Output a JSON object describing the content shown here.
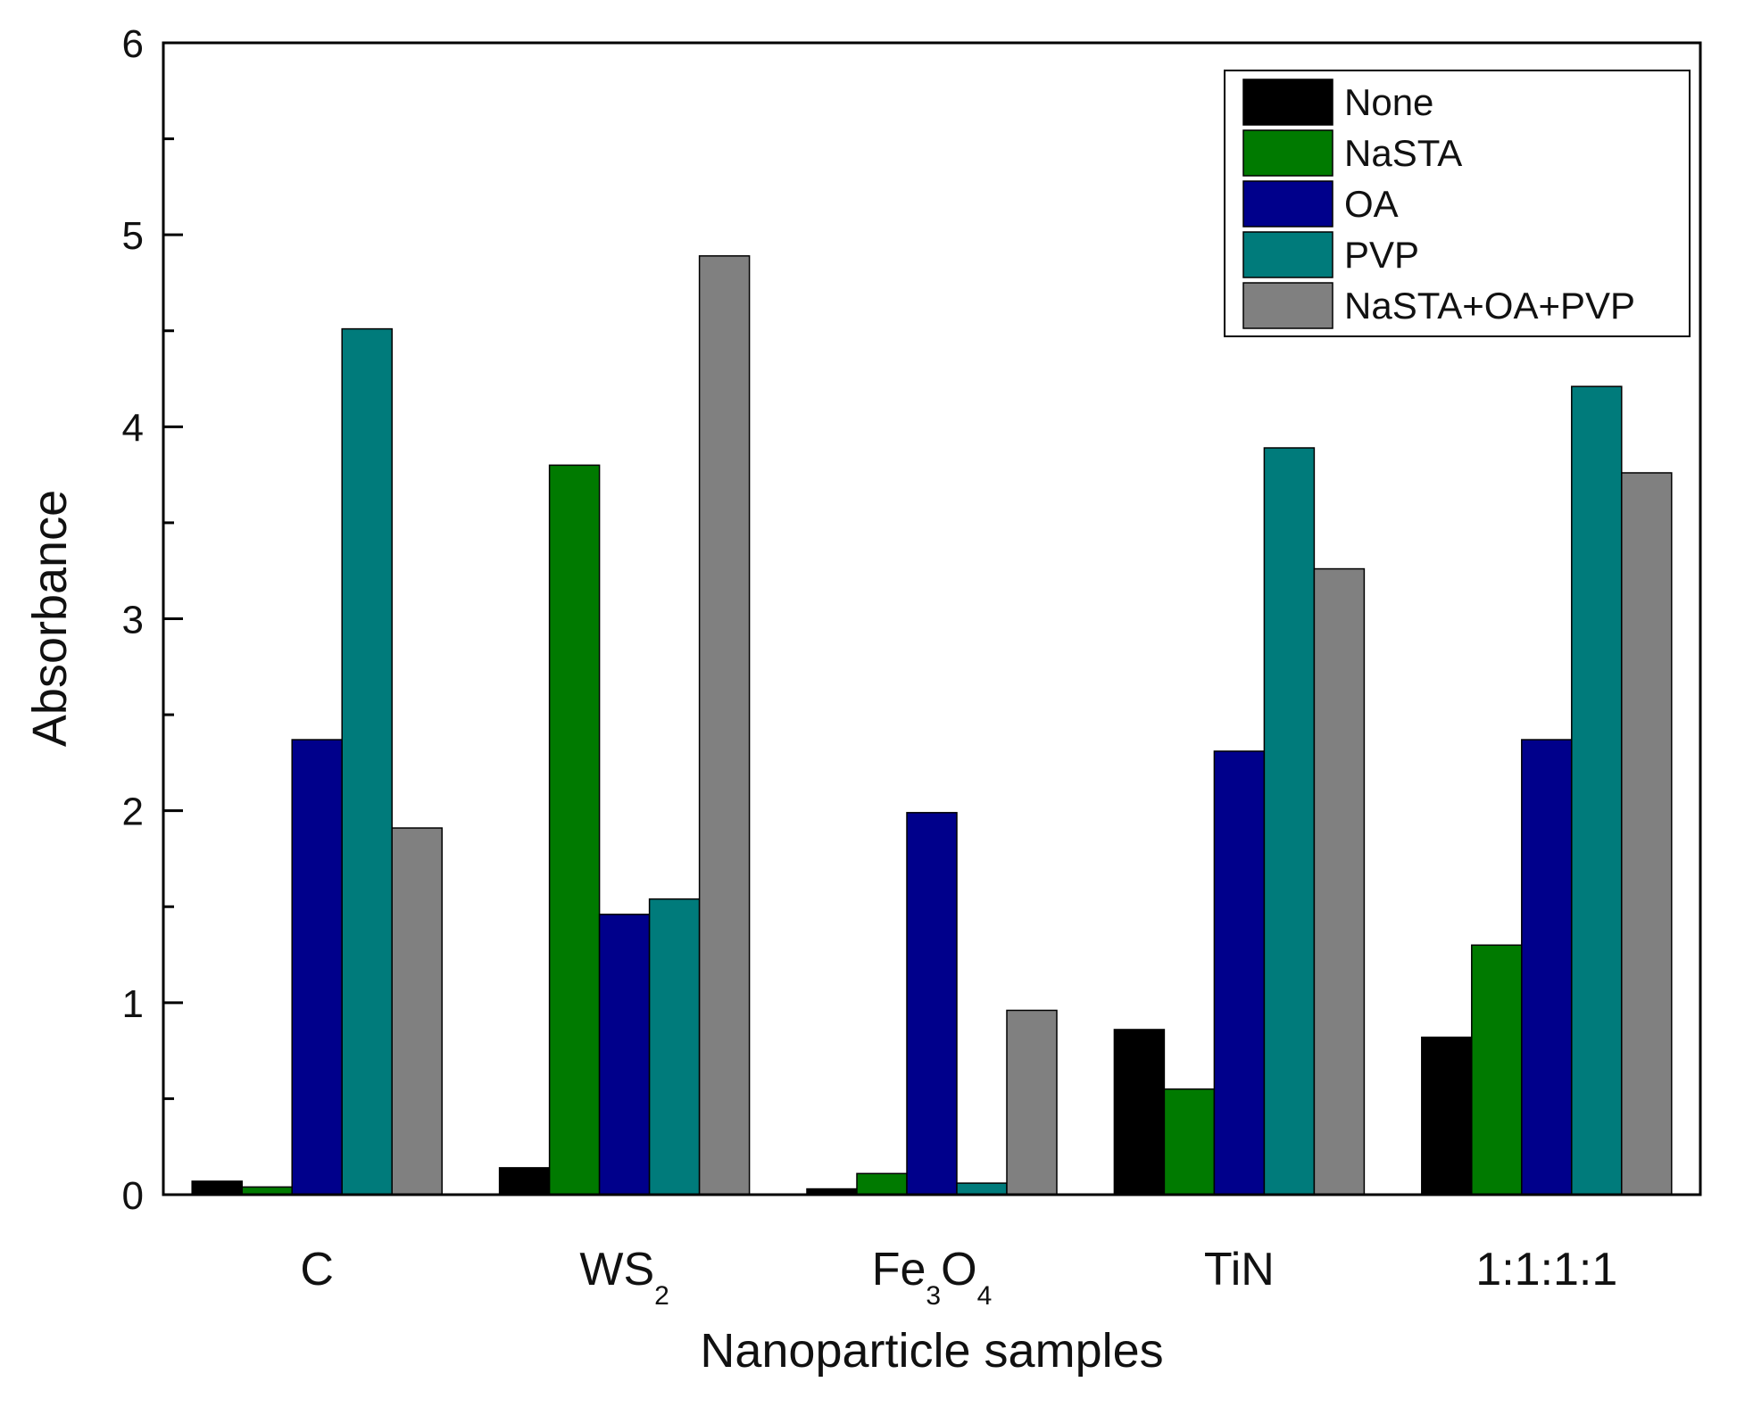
{
  "chart_data": {
    "type": "bar",
    "title": "",
    "xlabel": "Nanoparticle samples",
    "ylabel": "Absorbance",
    "ylim": [
      0,
      6
    ],
    "yticks": [
      "0",
      "1",
      "2",
      "3",
      "4",
      "5",
      "6"
    ],
    "grid": false,
    "legend_position": "top-right",
    "categories": [
      "C",
      "WS2",
      "Fe3O4",
      "TiN",
      "1:1:1:1"
    ],
    "category_labels": [
      {
        "parts": [
          {
            "text": "C"
          }
        ]
      },
      {
        "parts": [
          {
            "text": "WS"
          },
          {
            "text": "2",
            "sub": true
          }
        ]
      },
      {
        "parts": [
          {
            "text": "Fe"
          },
          {
            "text": "3",
            "sub": true
          },
          {
            "text": "O"
          },
          {
            "text": "4",
            "sub": true
          }
        ]
      },
      {
        "parts": [
          {
            "text": "TiN"
          }
        ]
      },
      {
        "parts": [
          {
            "text": "1:1:1:1"
          }
        ]
      }
    ],
    "series": [
      {
        "name": "None",
        "color": "#000000",
        "values": [
          0.07,
          0.14,
          0.03,
          0.86,
          0.82
        ]
      },
      {
        "name": "NaSTA",
        "color": "#007a00",
        "values": [
          0.04,
          3.8,
          0.11,
          0.55,
          1.3
        ]
      },
      {
        "name": "OA",
        "color": "#00008b",
        "values": [
          2.37,
          1.46,
          1.99,
          2.31,
          2.37
        ]
      },
      {
        "name": "PVP",
        "color": "#007b7b",
        "values": [
          4.51,
          1.54,
          0.06,
          3.89,
          4.21
        ]
      },
      {
        "name": "NaSTA+OA+PVP",
        "color": "#808080",
        "values": [
          1.91,
          4.89,
          0.96,
          3.26,
          3.76
        ]
      }
    ]
  }
}
